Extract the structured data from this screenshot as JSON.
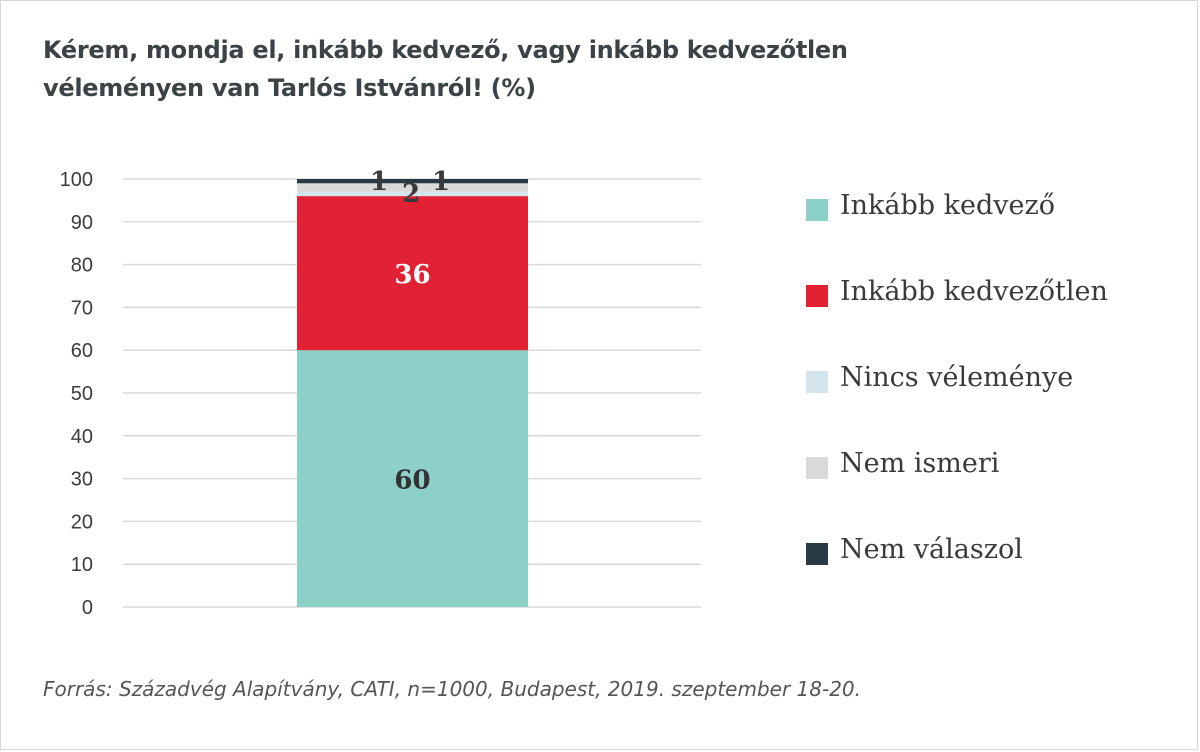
{
  "title_lines": [
    "Kérem, mondja el, inkább kedvező, vagy inkább kedvezőtlen",
    "véleményen van Tarlós Istvánról! (%)"
  ],
  "source": "Forrás: Századvég Alapítvány, CATI, n=1000, Budapest, 2019. szeptember 18-20.",
  "chart_data": {
    "type": "bar",
    "stacked": true,
    "categories": [
      ""
    ],
    "ylim": [
      0,
      100
    ],
    "yticks": [
      "0",
      "10",
      "20",
      "30",
      "40",
      "50",
      "60",
      "70",
      "80",
      "90",
      "100"
    ],
    "grid": true,
    "legend_position": "right",
    "series": [
      {
        "name": "Inkább kedvező",
        "values": [
          60
        ],
        "color": "#8dd0c8",
        "label": "60",
        "label_color": "#333333"
      },
      {
        "name": "Inkább kedvezőtlen",
        "values": [
          36
        ],
        "color": "#e32134",
        "label": "36",
        "label_color": "#ffffff"
      },
      {
        "name": "Nincs véleménye",
        "values": [
          1
        ],
        "color": "#d3e5ea",
        "label": "1",
        "label_color": "#3a3a3a"
      },
      {
        "name": "Nem ismeri",
        "values": [
          2
        ],
        "color": "#d9d9d9",
        "label": "2",
        "label_color": "#3a3a3a"
      },
      {
        "name": "Nem válaszol",
        "values": [
          1
        ],
        "color": "#2a3a44",
        "label": "1",
        "label_color": "#3a3a3a"
      }
    ]
  }
}
